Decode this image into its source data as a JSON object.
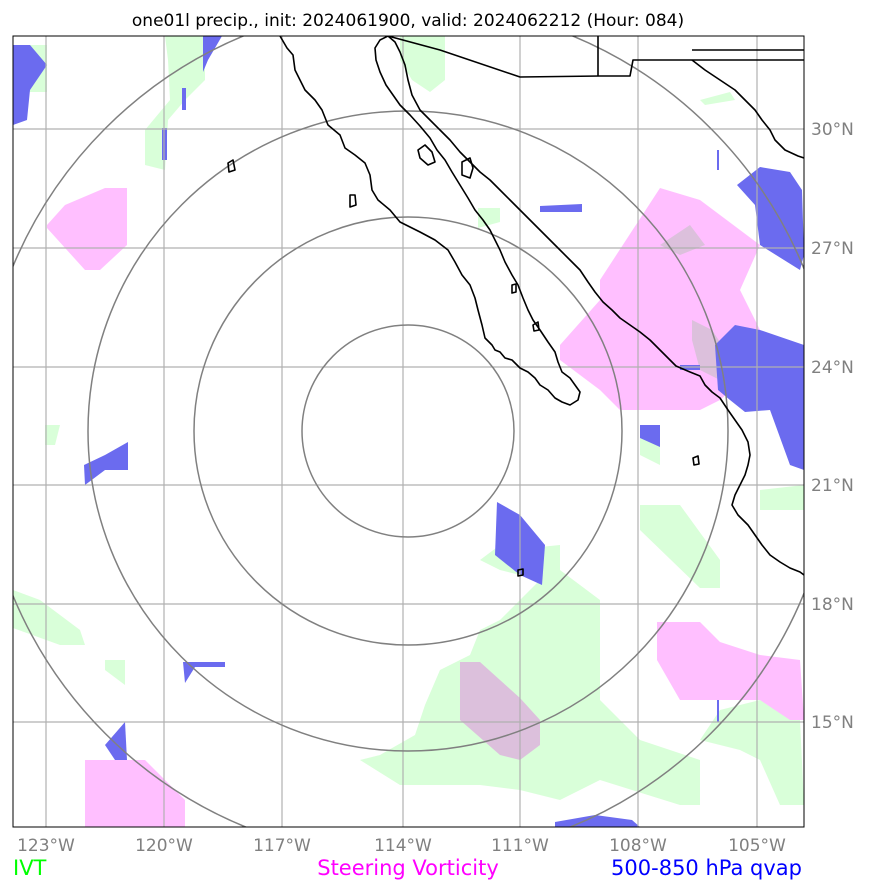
{
  "title": "one01l precip., init: 2024061900, valid: 2024062212 (Hour: 084)",
  "lon_labels": [
    "123°W",
    "120°W",
    "117°W",
    "114°W",
    "111°W",
    "108°W",
    "105°W"
  ],
  "lat_labels": [
    "30°N",
    "27°N",
    "24°N",
    "21°N",
    "18°N",
    "15°N"
  ],
  "legend": [
    {
      "label": "IVT",
      "color": "#00ff00"
    },
    {
      "label": "Steering Vorticity",
      "color": "#ff00ff"
    },
    {
      "label": "500-850 hPa qvap",
      "color": "#0000ff"
    }
  ],
  "colors": {
    "ivt_fill": "#d9ffd9",
    "vorticity_fill": "#ffbfff",
    "qvap_fill": "#6b6bef",
    "overlap_fill": "#dcc0dc",
    "gridline": "#b0b0b0",
    "range_ring": "#808080",
    "coastline": "#000000"
  }
}
